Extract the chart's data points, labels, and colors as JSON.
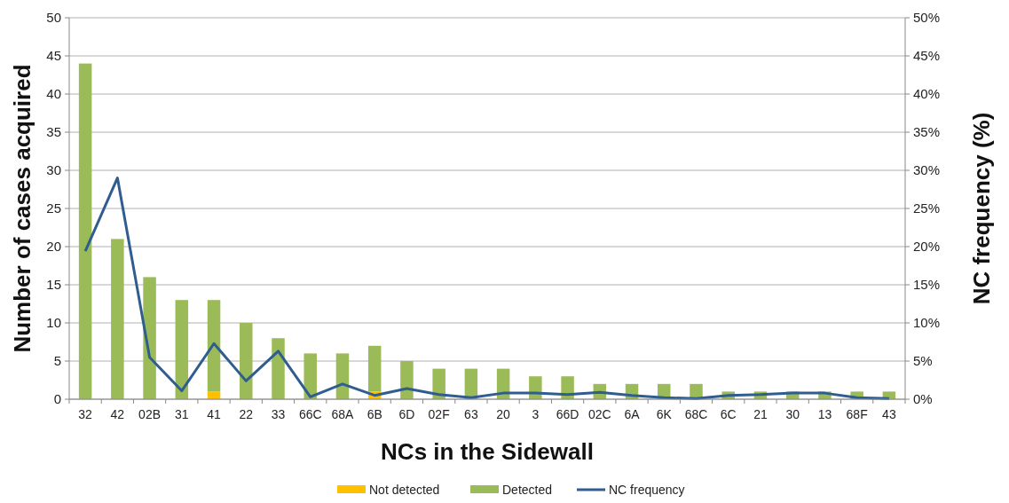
{
  "chart_data": {
    "type": "bar",
    "stacked": true,
    "xlabel": "NCs in the Sidewall",
    "ylabel": "Number of cases acquired",
    "y2label": "NC frequency (%)",
    "categories": [
      "32",
      "42",
      "02B",
      "31",
      "41",
      "22",
      "33",
      "66C",
      "68A",
      "6B",
      "6D",
      "02F",
      "63",
      "20",
      "3",
      "66D",
      "02C",
      "6A",
      "6K",
      "68C",
      "6C",
      "21",
      "30",
      "13",
      "68F",
      "43"
    ],
    "series": [
      {
        "name": "Not detected",
        "color": "#ffc000",
        "values": [
          0,
          0,
          0,
          0,
          1,
          0,
          0,
          0,
          0,
          1,
          0,
          0,
          0,
          0,
          0,
          0,
          0,
          0,
          0,
          0,
          0,
          0,
          0,
          0,
          0,
          0
        ]
      },
      {
        "name": "Detected",
        "color": "#9bbb59",
        "values": [
          44,
          21,
          16,
          13,
          12,
          10,
          8,
          6,
          6,
          6,
          5,
          4,
          4,
          4,
          3,
          3,
          2,
          2,
          2,
          2,
          1,
          1,
          1,
          1,
          1,
          1
        ]
      },
      {
        "name": "NC frequency",
        "type": "line",
        "axis": "y2",
        "color": "#2f5d8f",
        "values": [
          19.4,
          29,
          5.5,
          1.1,
          7.3,
          2.4,
          6.3,
          0.3,
          2,
          0.5,
          1.4,
          0.6,
          0.2,
          0.8,
          0.8,
          0.6,
          0.9,
          0.5,
          0.2,
          0.1,
          0.5,
          0.6,
          0.8,
          0.8,
          0.2,
          0.1
        ]
      }
    ],
    "ylim": [
      0,
      50
    ],
    "yticks": [
      0,
      5,
      10,
      15,
      20,
      25,
      30,
      35,
      40,
      45,
      50
    ],
    "y2lim": [
      0,
      50
    ],
    "y2ticks": [
      {
        "value": 0,
        "label": "0%"
      },
      {
        "value": 5,
        "label": "5%"
      },
      {
        "value": 10,
        "label": "10%"
      },
      {
        "value": 15,
        "label": "15%"
      },
      {
        "value": 20,
        "label": "20%"
      },
      {
        "value": 25,
        "label": "25%"
      },
      {
        "value": 30,
        "label": "30%"
      },
      {
        "value": 35,
        "label": "35%"
      },
      {
        "value": 40,
        "label": "40%"
      },
      {
        "value": 45,
        "label": "45%"
      },
      {
        "value": 50,
        "label": "50%"
      }
    ],
    "grid": "y",
    "legend": "bottom",
    "marker": "none",
    "line_style": "solid"
  }
}
